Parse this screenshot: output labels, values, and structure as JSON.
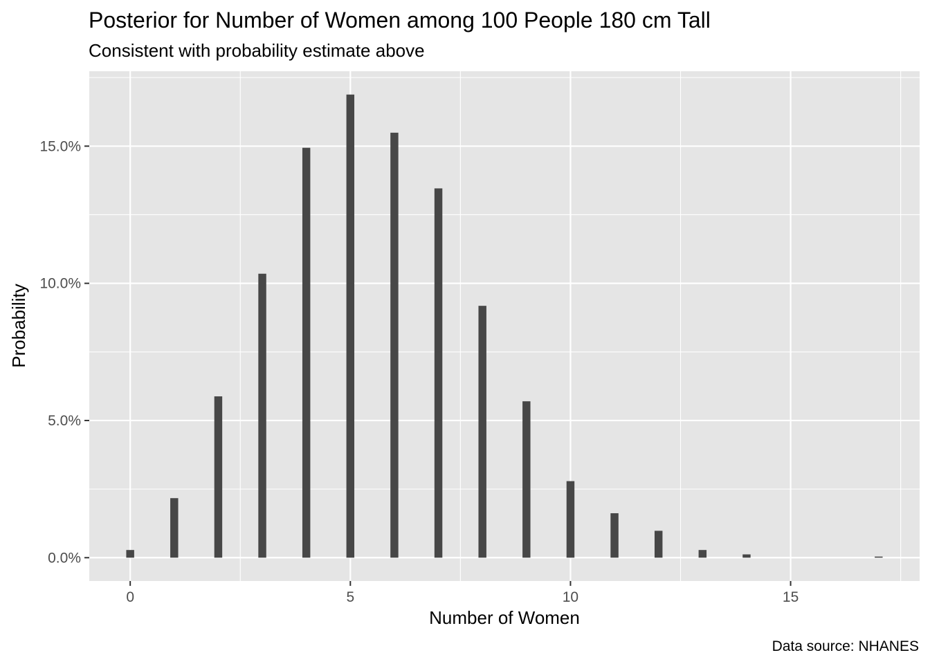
{
  "chart_data": {
    "type": "bar",
    "title": "Posterior for Number of Women among 100 People 180 cm Tall",
    "subtitle": "Consistent with probability estimate above",
    "xlabel": "Number of Women",
    "ylabel": "Probability",
    "caption": "Data source: NHANES",
    "x": [
      0,
      1,
      2,
      3,
      4,
      5,
      6,
      7,
      8,
      9,
      10,
      11,
      12,
      13,
      14,
      17
    ],
    "values": [
      0.0028,
      0.0217,
      0.0588,
      0.1035,
      0.1494,
      0.1688,
      0.1549,
      0.1346,
      0.0918,
      0.057,
      0.0279,
      0.0162,
      0.0098,
      0.0028,
      0.0012,
      0.0004
    ],
    "xlim": [
      -0.93,
      17.93
    ],
    "ylim": [
      -0.0085,
      0.1773
    ],
    "x_ticks": [
      0,
      5,
      10,
      15
    ],
    "x_tick_labels": [
      "0",
      "5",
      "10",
      "15"
    ],
    "y_ticks": [
      0,
      0.05,
      0.1,
      0.15
    ],
    "y_tick_labels": [
      "0.0%",
      "5.0%",
      "10.0%",
      "15.0%"
    ],
    "bar_color": "#474747",
    "panel_background": "#e5e5e5",
    "grid_color": "#ffffff",
    "grid": true,
    "legend": "none"
  }
}
